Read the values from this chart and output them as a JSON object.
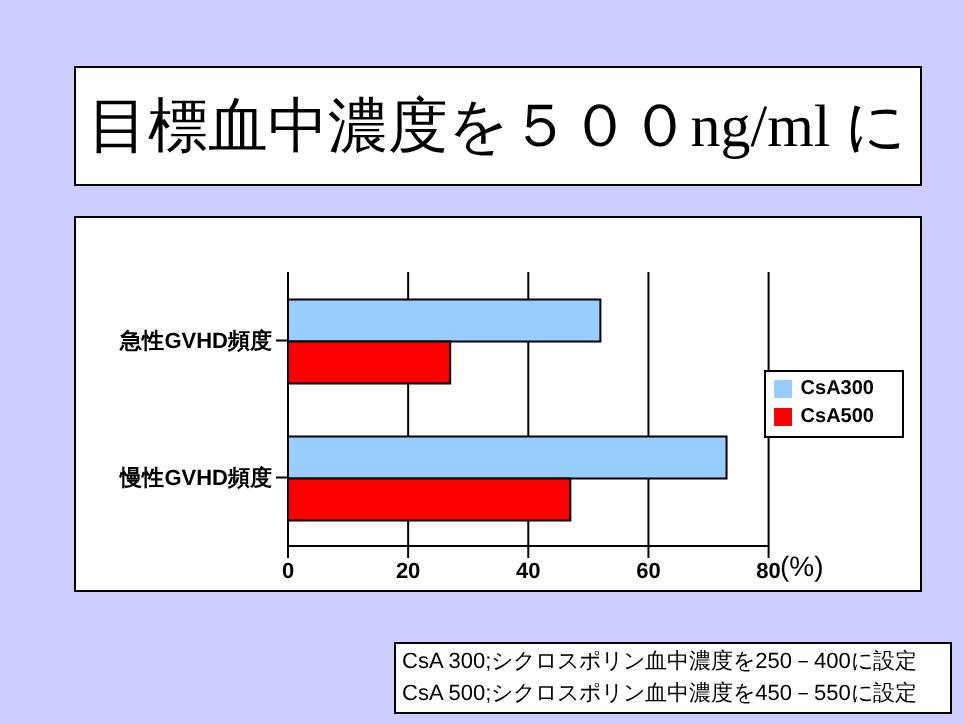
{
  "chart_data": {
    "type": "bar",
    "orientation": "horizontal",
    "title": "目標血中濃度を５００ng/ml に",
    "categories": [
      "急性GVHD頻度",
      "慢性GVHD頻度"
    ],
    "series": [
      {
        "name": "CsA300",
        "color": "#99ccff",
        "values": [
          52,
          73
        ]
      },
      {
        "name": "CsA500",
        "color": "#ff0000",
        "values": [
          27,
          47
        ]
      }
    ],
    "xlim": [
      0,
      80
    ],
    "xticks": [
      0,
      20,
      40,
      60,
      80
    ],
    "xlabel": "(%)",
    "grid": "x",
    "legend": "right",
    "annotations": [
      "CsA 300;シクロスポリン血中濃度を250－400に設定",
      "CsA 500;シクロスポリン血中濃度を450－550に設定"
    ]
  }
}
